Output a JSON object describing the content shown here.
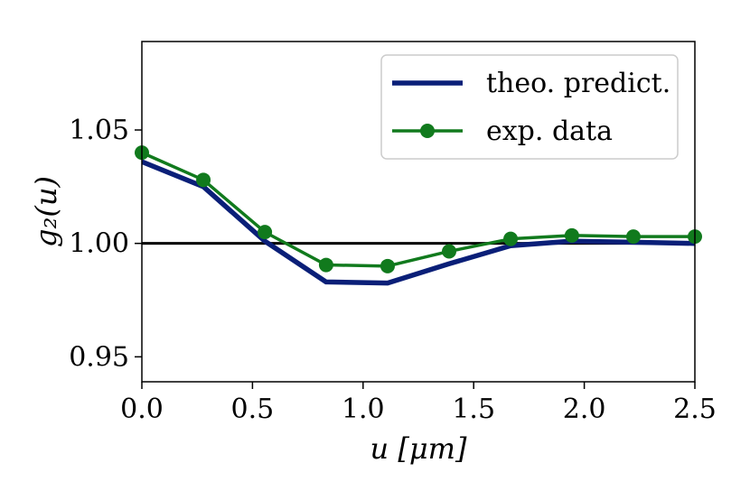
{
  "chart_data": {
    "type": "line",
    "title": "",
    "xlabel": "u [μm]",
    "ylabel": "g₂(u)",
    "xlim": [
      0.0,
      2.5
    ],
    "ylim": [
      0.939,
      1.089
    ],
    "xticks": [
      0.0,
      0.5,
      1.0,
      1.5,
      2.0,
      2.5
    ],
    "xtick_labels": [
      "0.0",
      "0.5",
      "1.0",
      "1.5",
      "2.0",
      "2.5"
    ],
    "yticks": [
      0.95,
      1.0,
      1.05
    ],
    "ytick_labels": [
      "0.95",
      "1.00",
      "1.05"
    ],
    "reference_line": 1.0,
    "legend_position": "top-right",
    "series": [
      {
        "name": "theo. predict.",
        "color": "#0a1f78",
        "marker": false,
        "x": [
          0.0,
          0.278,
          0.556,
          0.833,
          1.111,
          1.389,
          1.667,
          1.944,
          2.222,
          2.5
        ],
        "y": [
          1.036,
          1.025,
          1.001,
          0.983,
          0.9825,
          0.991,
          0.999,
          1.001,
          1.0005,
          1.0
        ]
      },
      {
        "name": "exp. data",
        "color": "#117a1d",
        "marker": true,
        "x": [
          0.0,
          0.278,
          0.556,
          0.833,
          1.111,
          1.389,
          1.667,
          1.944,
          2.222,
          2.5
        ],
        "y": [
          1.04,
          1.028,
          1.005,
          0.9905,
          0.99,
          0.9965,
          1.002,
          1.0035,
          1.003,
          1.003
        ]
      }
    ]
  }
}
